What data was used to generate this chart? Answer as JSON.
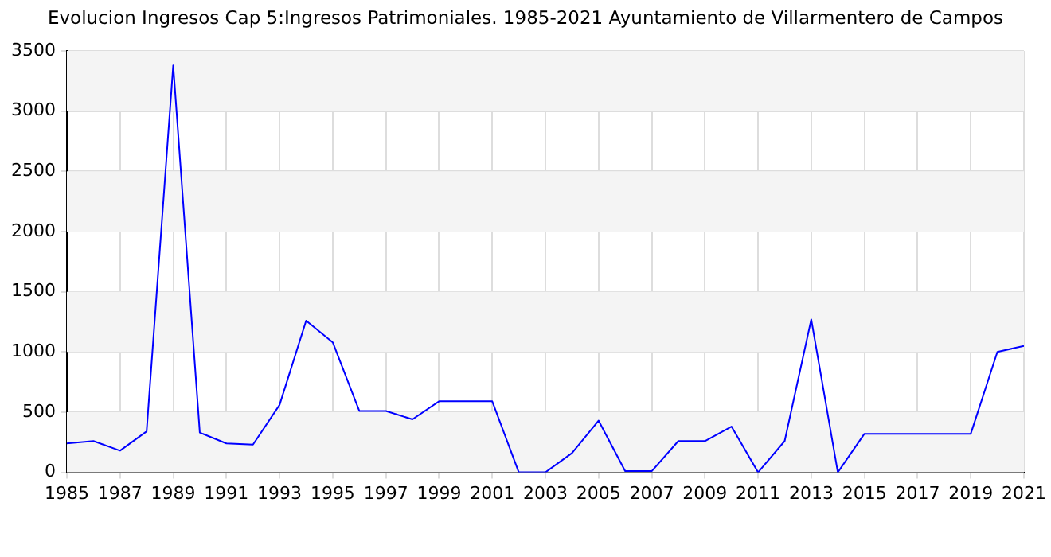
{
  "chart_data": {
    "type": "line",
    "title": "Evolucion Ingresos Cap 5:Ingresos Patrimoniales. 1985-2021 Ayuntamiento de Villarmentero de Campos",
    "x": [
      1985,
      1986,
      1987,
      1988,
      1989,
      1990,
      1991,
      1992,
      1993,
      1994,
      1995,
      1996,
      1997,
      1998,
      1999,
      2000,
      2001,
      2002,
      2003,
      2004,
      2005,
      2006,
      2007,
      2008,
      2009,
      2010,
      2011,
      2012,
      2013,
      2014,
      2015,
      2016,
      2017,
      2018,
      2019,
      2020,
      2021
    ],
    "series": [
      {
        "color": "#0000ff",
        "values": [
          240,
          260,
          180,
          340,
          3380,
          330,
          240,
          230,
          560,
          1260,
          1080,
          510,
          510,
          440,
          590,
          590,
          590,
          0,
          0,
          160,
          430,
          10,
          10,
          260,
          260,
          380,
          0,
          260,
          1270,
          0,
          320,
          320,
          320,
          320,
          320,
          1000,
          1050
        ]
      }
    ],
    "xlim": [
      1985,
      2021
    ],
    "xticks": [
      1985,
      1987,
      1989,
      1991,
      1993,
      1995,
      1997,
      1999,
      2001,
      2003,
      2005,
      2007,
      2009,
      2011,
      2013,
      2015,
      2017,
      2019,
      2021
    ],
    "ylim": [
      0,
      3500
    ],
    "yticks": [
      0,
      500,
      1000,
      1500,
      2000,
      2500,
      3000,
      3500
    ],
    "grid": true,
    "legend": false,
    "marker": "none",
    "line_style": "solid"
  }
}
